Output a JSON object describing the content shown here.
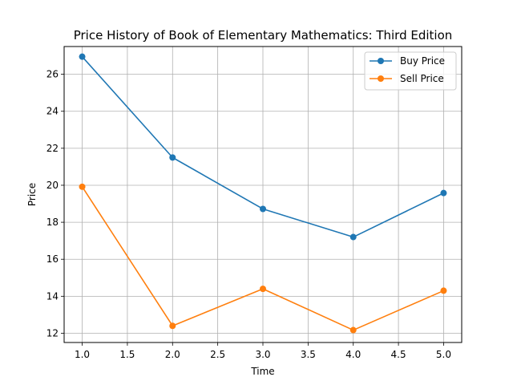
{
  "chart_data": {
    "type": "line",
    "title": "Price History of Book of Elementary Mathematics: Third Edition",
    "xlabel": "Time",
    "ylabel": "Price",
    "x": [
      1.0,
      2.0,
      3.0,
      4.0,
      5.0
    ],
    "xlim": [
      0.8,
      5.2
    ],
    "ylim": [
      11.5,
      27.5
    ],
    "xticks": [
      1.0,
      1.5,
      2.0,
      2.5,
      3.0,
      3.5,
      4.0,
      4.5,
      5.0
    ],
    "xtick_labels": [
      "1.0",
      "1.5",
      "2.0",
      "2.5",
      "3.0",
      "3.5",
      "4.0",
      "4.5",
      "5.0"
    ],
    "yticks": [
      12,
      14,
      16,
      18,
      20,
      22,
      24,
      26
    ],
    "ytick_labels": [
      "12",
      "14",
      "16",
      "18",
      "20",
      "22",
      "24",
      "26"
    ],
    "grid": true,
    "legend": "top-right",
    "series": [
      {
        "name": "Buy Price",
        "color": "#1f77b4",
        "marker": "circle",
        "values": [
          26.95,
          21.5,
          18.72,
          17.2,
          19.58
        ]
      },
      {
        "name": "Sell Price",
        "color": "#ff7f0e",
        "marker": "circle",
        "values": [
          19.92,
          12.4,
          14.4,
          12.17,
          14.3
        ]
      }
    ]
  }
}
